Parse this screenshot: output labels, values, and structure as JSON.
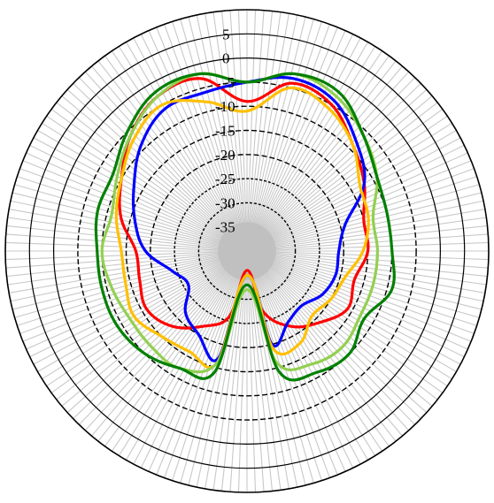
{
  "chart_data": {
    "type": "polar-line",
    "title": "",
    "r_ticks": [
      "5",
      "0",
      "-5",
      "-10",
      "-15",
      "-20",
      "-25",
      "-30",
      "-35"
    ],
    "r_values": [
      5,
      0,
      -5,
      -10,
      -15,
      -20,
      -25,
      -30,
      -35
    ],
    "r_range": [
      -40,
      10
    ],
    "angular_divisions": 180,
    "grid": true,
    "colors": {
      "spokes": "#c8c8c8",
      "outer_ring": "#000000",
      "inner_rings": "#000000",
      "center": "#c0c0c0"
    },
    "series": [
      {
        "color": "#ff0000",
        "points": [
          [
            0,
            -9
          ],
          [
            15,
            -4
          ],
          [
            30,
            -5
          ],
          [
            45,
            -9
          ],
          [
            60,
            -12
          ],
          [
            75,
            -15
          ],
          [
            90,
            -15
          ],
          [
            105,
            -17
          ],
          [
            120,
            -16
          ],
          [
            135,
            -19
          ],
          [
            150,
            -22
          ],
          [
            165,
            -27
          ],
          [
            180,
            -36
          ],
          [
            195,
            -26
          ],
          [
            210,
            -22
          ],
          [
            225,
            -18
          ],
          [
            240,
            -16
          ],
          [
            255,
            -17
          ],
          [
            270,
            -17
          ],
          [
            285,
            -13
          ],
          [
            300,
            -10
          ],
          [
            315,
            -6
          ],
          [
            330,
            -3
          ],
          [
            345,
            -3
          ]
        ]
      },
      {
        "color": "#0000ff",
        "points": [
          [
            0,
            -5
          ],
          [
            15,
            -3
          ],
          [
            30,
            -4
          ],
          [
            45,
            -8
          ],
          [
            60,
            -12
          ],
          [
            75,
            -19
          ],
          [
            90,
            -21
          ],
          [
            105,
            -21
          ],
          [
            120,
            -22
          ],
          [
            135,
            -24
          ],
          [
            150,
            -23
          ],
          [
            165,
            -20
          ],
          [
            180,
            -35
          ],
          [
            195,
            -17
          ],
          [
            210,
            -20
          ],
          [
            225,
            -22
          ],
          [
            240,
            -26
          ],
          [
            255,
            -24
          ],
          [
            270,
            -19
          ],
          [
            285,
            -16
          ],
          [
            300,
            -13
          ],
          [
            315,
            -9
          ],
          [
            330,
            -6
          ],
          [
            345,
            -6
          ]
        ]
      },
      {
        "color": "#ffc000",
        "points": [
          [
            0,
            -11
          ],
          [
            15,
            -5
          ],
          [
            30,
            -6
          ],
          [
            45,
            -9
          ],
          [
            60,
            -13
          ],
          [
            75,
            -14
          ],
          [
            90,
            -16
          ],
          [
            105,
            -19
          ],
          [
            120,
            -20
          ],
          [
            135,
            -21
          ],
          [
            150,
            -18
          ],
          [
            165,
            -19
          ],
          [
            180,
            -35
          ],
          [
            195,
            -16
          ],
          [
            210,
            -16
          ],
          [
            225,
            -15
          ],
          [
            240,
            -13
          ],
          [
            255,
            -14
          ],
          [
            270,
            -14
          ],
          [
            285,
            -12
          ],
          [
            300,
            -10
          ],
          [
            315,
            -7
          ],
          [
            330,
            -5
          ],
          [
            345,
            -8
          ]
        ]
      },
      {
        "color": "#92d050",
        "points": [
          [
            0,
            -5
          ],
          [
            15,
            -2
          ],
          [
            30,
            -3
          ],
          [
            45,
            -6
          ],
          [
            60,
            -9
          ],
          [
            75,
            -13
          ],
          [
            90,
            -13
          ],
          [
            105,
            -13
          ],
          [
            120,
            -13
          ],
          [
            135,
            -12
          ],
          [
            150,
            -13
          ],
          [
            165,
            -16
          ],
          [
            180,
            -32
          ],
          [
            195,
            -16
          ],
          [
            210,
            -12
          ],
          [
            225,
            -12
          ],
          [
            240,
            -12
          ],
          [
            255,
            -11
          ],
          [
            270,
            -10
          ],
          [
            285,
            -11
          ],
          [
            300,
            -9
          ],
          [
            315,
            -6
          ],
          [
            330,
            -3
          ],
          [
            345,
            -2
          ]
        ]
      },
      {
        "color": "#008000",
        "points": [
          [
            0,
            -5
          ],
          [
            15,
            -2
          ],
          [
            30,
            -2
          ],
          [
            45,
            -6
          ],
          [
            60,
            -9
          ],
          [
            75,
            -10
          ],
          [
            90,
            -10
          ],
          [
            105,
            -9
          ],
          [
            120,
            -12
          ],
          [
            135,
            -10
          ],
          [
            150,
            -11
          ],
          [
            165,
            -14
          ],
          [
            180,
            -33
          ],
          [
            195,
            -14
          ],
          [
            210,
            -12
          ],
          [
            225,
            -10
          ],
          [
            240,
            -9
          ],
          [
            255,
            -9
          ],
          [
            270,
            -9
          ],
          [
            285,
            -8
          ],
          [
            300,
            -8
          ],
          [
            315,
            -5
          ],
          [
            330,
            -2
          ],
          [
            345,
            -2
          ]
        ]
      }
    ]
  }
}
